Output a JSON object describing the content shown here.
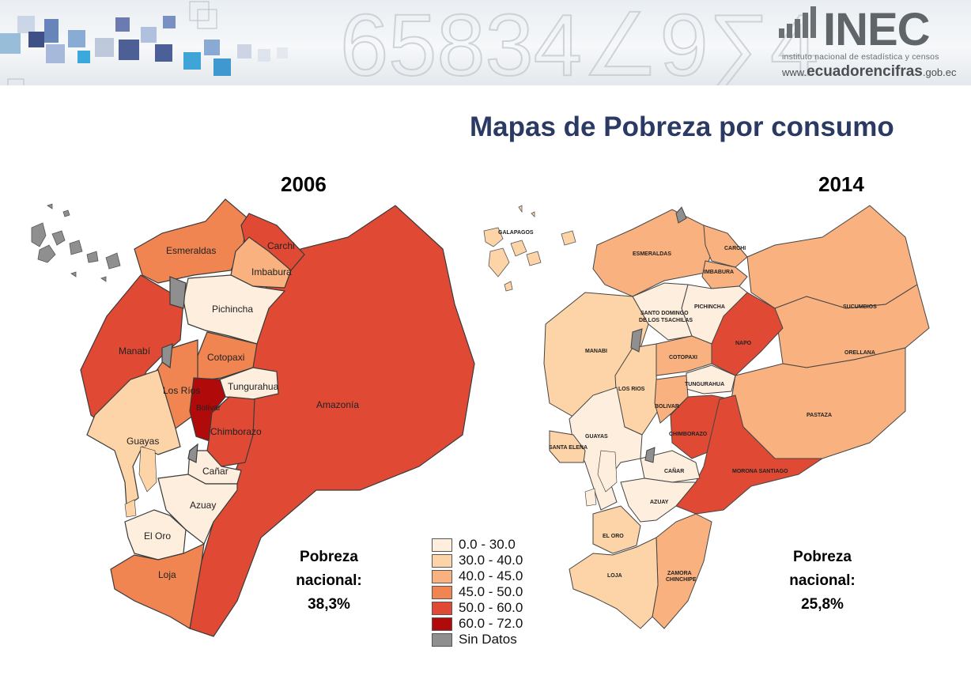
{
  "header": {
    "logo_text": "INEC",
    "logo_subtitle": "instituto nacional de estadística y censos",
    "website_prefix": "www.",
    "website_main": "ecuadorencifras",
    "website_suffix": ".gob.ec"
  },
  "title": "Mapas de Pobreza por consumo",
  "maps": [
    {
      "year": "2006",
      "stat_line1": "Pobreza",
      "stat_line2": "nacional:",
      "stat_value": "38,3%",
      "labels": [
        "Esmeraldas",
        "Carchi",
        "Imbabura",
        "Pichincha",
        "Manabí",
        "Cotopaxi",
        "Los Ríos",
        "Tungurahua",
        "Bolívar",
        "Chimborazo",
        "Guayas",
        "Cañar",
        "Azuay",
        "El Oro",
        "Loja",
        "Amazonía"
      ]
    },
    {
      "year": "2014",
      "stat_line1": "Pobreza",
      "stat_line2": "nacional:",
      "stat_value": "25,8%",
      "labels": [
        "GALAPAGOS",
        "ESMERALDAS",
        "CARCHI",
        "IMBABURA",
        "PICHINCHA",
        "SUCUMBIOS",
        "SANTO DOMINGO",
        "DE LOS TSACHILAS",
        "NAPO",
        "ORELLANA",
        "MANABI",
        "COTOPAXI",
        "TUNGURAHUA",
        "LOS RIOS",
        "BOLIVAR",
        "PASTAZA",
        "GUAYAS",
        "CHIMBORAZO",
        "SANTA ELENA",
        "MORONA SANTIAGO",
        "CAÑAR",
        "AZUAY",
        "EL ORO",
        "ZAMORA",
        "CHINCHIPE",
        "LOJA"
      ]
    }
  ],
  "legend": [
    {
      "label": "0.0 - 30.0",
      "color": "#fdeedd"
    },
    {
      "label": "30.0 - 40.0",
      "color": "#fdd4a8"
    },
    {
      "label": "40.0 - 45.0",
      "color": "#f9b27f"
    },
    {
      "label": "45.0 - 50.0",
      "color": "#f08552"
    },
    {
      "label": "50.0 - 60.0",
      "color": "#e04a34"
    },
    {
      "label": "60.0 - 72.0",
      "color": "#b00a0a"
    },
    {
      "label": "Sin Datos",
      "color": "#8f8f8f"
    }
  ]
}
